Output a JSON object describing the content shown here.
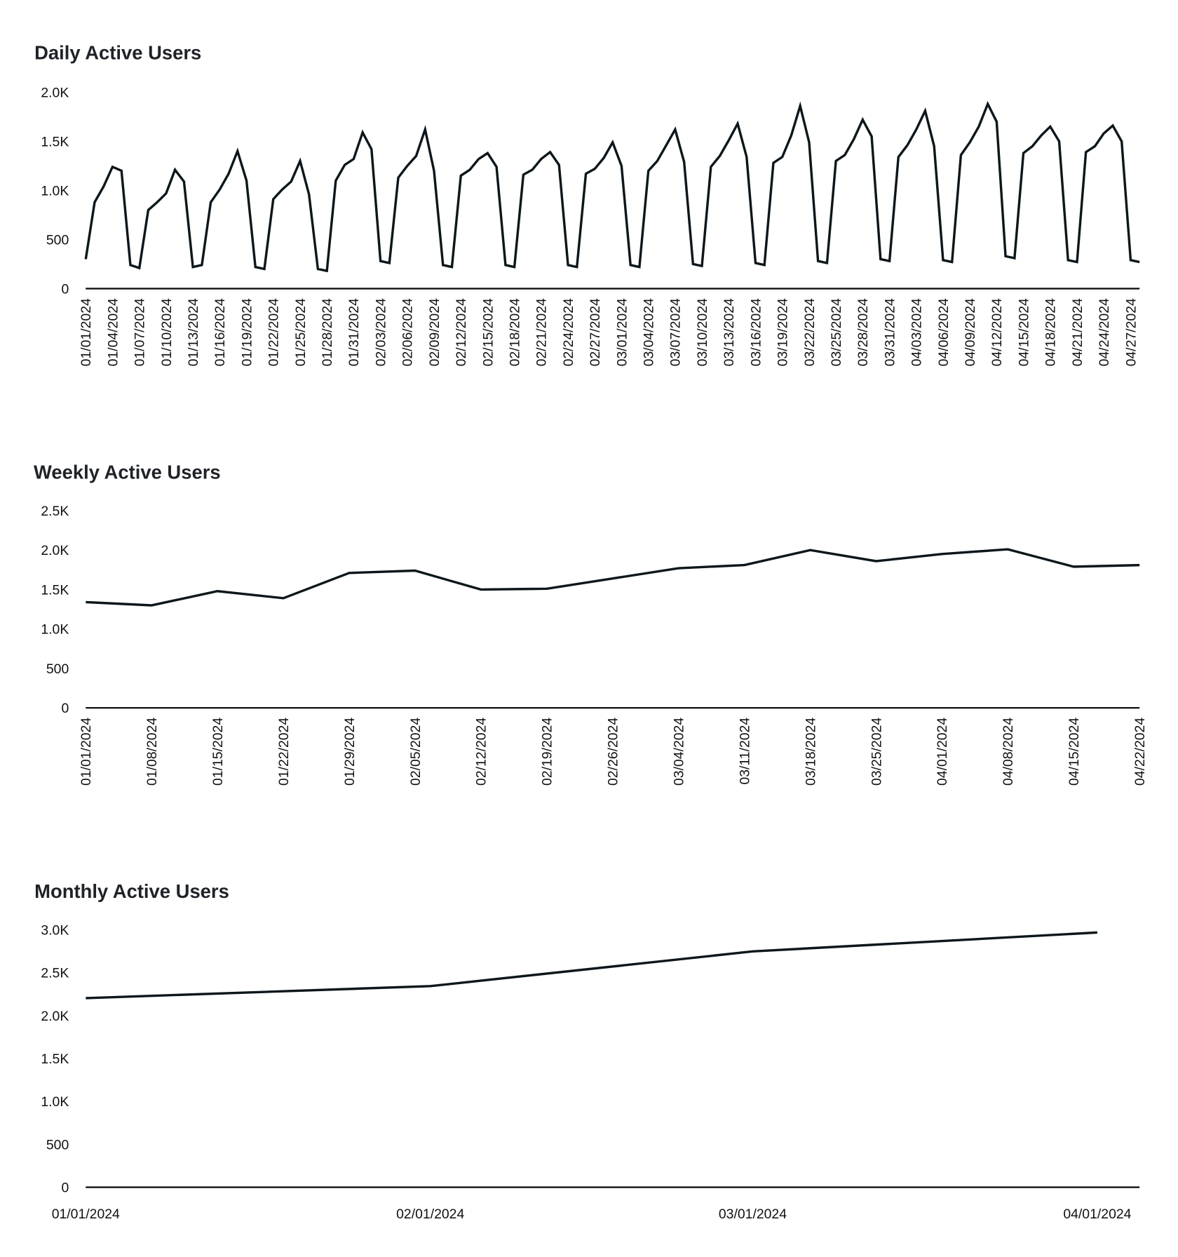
{
  "colors": {
    "line": "#0d171b",
    "title": "#1f2328",
    "text": "#111111",
    "background": "#ffffff"
  },
  "chart_data": [
    {
      "type": "line",
      "title": "Daily Active Users",
      "xlabel": "",
      "ylabel": "",
      "x_start": "01/01/2024",
      "x_step_days": 1,
      "x_tick_every": 3,
      "x_tick_labels": [
        "01/01/2024",
        "01/04/2024",
        "01/07/2024",
        "01/10/2024",
        "01/13/2024",
        "01/16/2024",
        "01/19/2024",
        "01/22/2024",
        "01/25/2024",
        "01/28/2024",
        "01/31/2024",
        "02/03/2024",
        "02/06/2024",
        "02/09/2024",
        "02/12/2024",
        "02/15/2024",
        "02/18/2024",
        "02/21/2024",
        "02/24/2024",
        "02/27/2024",
        "03/01/2024",
        "03/04/2024",
        "03/07/2024",
        "03/10/2024",
        "03/13/2024",
        "03/16/2024",
        "03/19/2024",
        "03/22/2024",
        "03/25/2024",
        "03/28/2024",
        "03/31/2024",
        "04/03/2024",
        "04/06/2024",
        "04/09/2024",
        "04/12/2024",
        "04/15/2024",
        "04/18/2024",
        "04/21/2024",
        "04/24/2024",
        "04/27/2024"
      ],
      "y_ticks": [
        0,
        500,
        1000,
        1500,
        2000
      ],
      "y_tick_labels": [
        "0",
        "500",
        "1.0K",
        "1.5K",
        "2.0K"
      ],
      "ylim": [
        0,
        2000
      ],
      "grid": false,
      "values": [
        300,
        880,
        1040,
        1240,
        1200,
        240,
        210,
        800,
        880,
        970,
        1210,
        1090,
        220,
        240,
        880,
        1010,
        1170,
        1400,
        1100,
        220,
        200,
        910,
        1010,
        1090,
        1300,
        960,
        200,
        180,
        1100,
        1260,
        1320,
        1590,
        1420,
        280,
        260,
        1130,
        1250,
        1350,
        1620,
        1200,
        240,
        220,
        1150,
        1210,
        1320,
        1380,
        1240,
        240,
        220,
        1160,
        1210,
        1320,
        1390,
        1260,
        240,
        220,
        1170,
        1220,
        1330,
        1490,
        1250,
        240,
        220,
        1200,
        1300,
        1460,
        1620,
        1290,
        250,
        230,
        1240,
        1350,
        1510,
        1680,
        1340,
        260,
        240,
        1280,
        1340,
        1560,
        1860,
        1490,
        280,
        260,
        1300,
        1360,
        1520,
        1720,
        1550,
        300,
        280,
        1340,
        1460,
        1620,
        1810,
        1450,
        290,
        270,
        1360,
        1490,
        1650,
        1880,
        1700,
        330,
        310,
        1380,
        1450,
        1560,
        1650,
        1500,
        290,
        270,
        1390,
        1450,
        1580,
        1660,
        1500,
        290,
        270
      ]
    },
    {
      "type": "line",
      "title": "Weekly Active Users",
      "xlabel": "",
      "ylabel": "",
      "x": [
        "01/01/2024",
        "01/08/2024",
        "01/15/2024",
        "01/22/2024",
        "01/29/2024",
        "02/05/2024",
        "02/12/2024",
        "02/19/2024",
        "02/26/2024",
        "03/04/2024",
        "03/11/2024",
        "03/18/2024",
        "03/25/2024",
        "04/01/2024",
        "04/08/2024",
        "04/15/2024",
        "04/22/2024"
      ],
      "y_ticks": [
        0,
        500,
        1000,
        1500,
        2000,
        2500
      ],
      "y_tick_labels": [
        "0",
        "500",
        "1.0K",
        "1.5K",
        "2.0K",
        "2.5K"
      ],
      "ylim": [
        0,
        2500
      ],
      "grid": false,
      "values": [
        1340,
        1300,
        1480,
        1390,
        1710,
        1740,
        1500,
        1510,
        1640,
        1770,
        1810,
        2000,
        1860,
        1950,
        2010,
        1790,
        1810
      ]
    },
    {
      "type": "line",
      "title": "Monthly Active Users",
      "xlabel": "",
      "ylabel": "",
      "x": [
        "01/01/2024",
        "02/01/2024",
        "03/01/2024",
        "04/01/2024"
      ],
      "x_day_offsets": [
        0,
        31,
        60,
        91
      ],
      "y_ticks": [
        0,
        500,
        1000,
        1500,
        2000,
        2500,
        3000
      ],
      "y_tick_labels": [
        "0",
        "500",
        "1.0K",
        "1.5K",
        "2.0K",
        "2.5K",
        "3.0K"
      ],
      "ylim": [
        0,
        3000
      ],
      "grid": false,
      "values": [
        2205,
        2345,
        2750,
        2970
      ]
    }
  ]
}
